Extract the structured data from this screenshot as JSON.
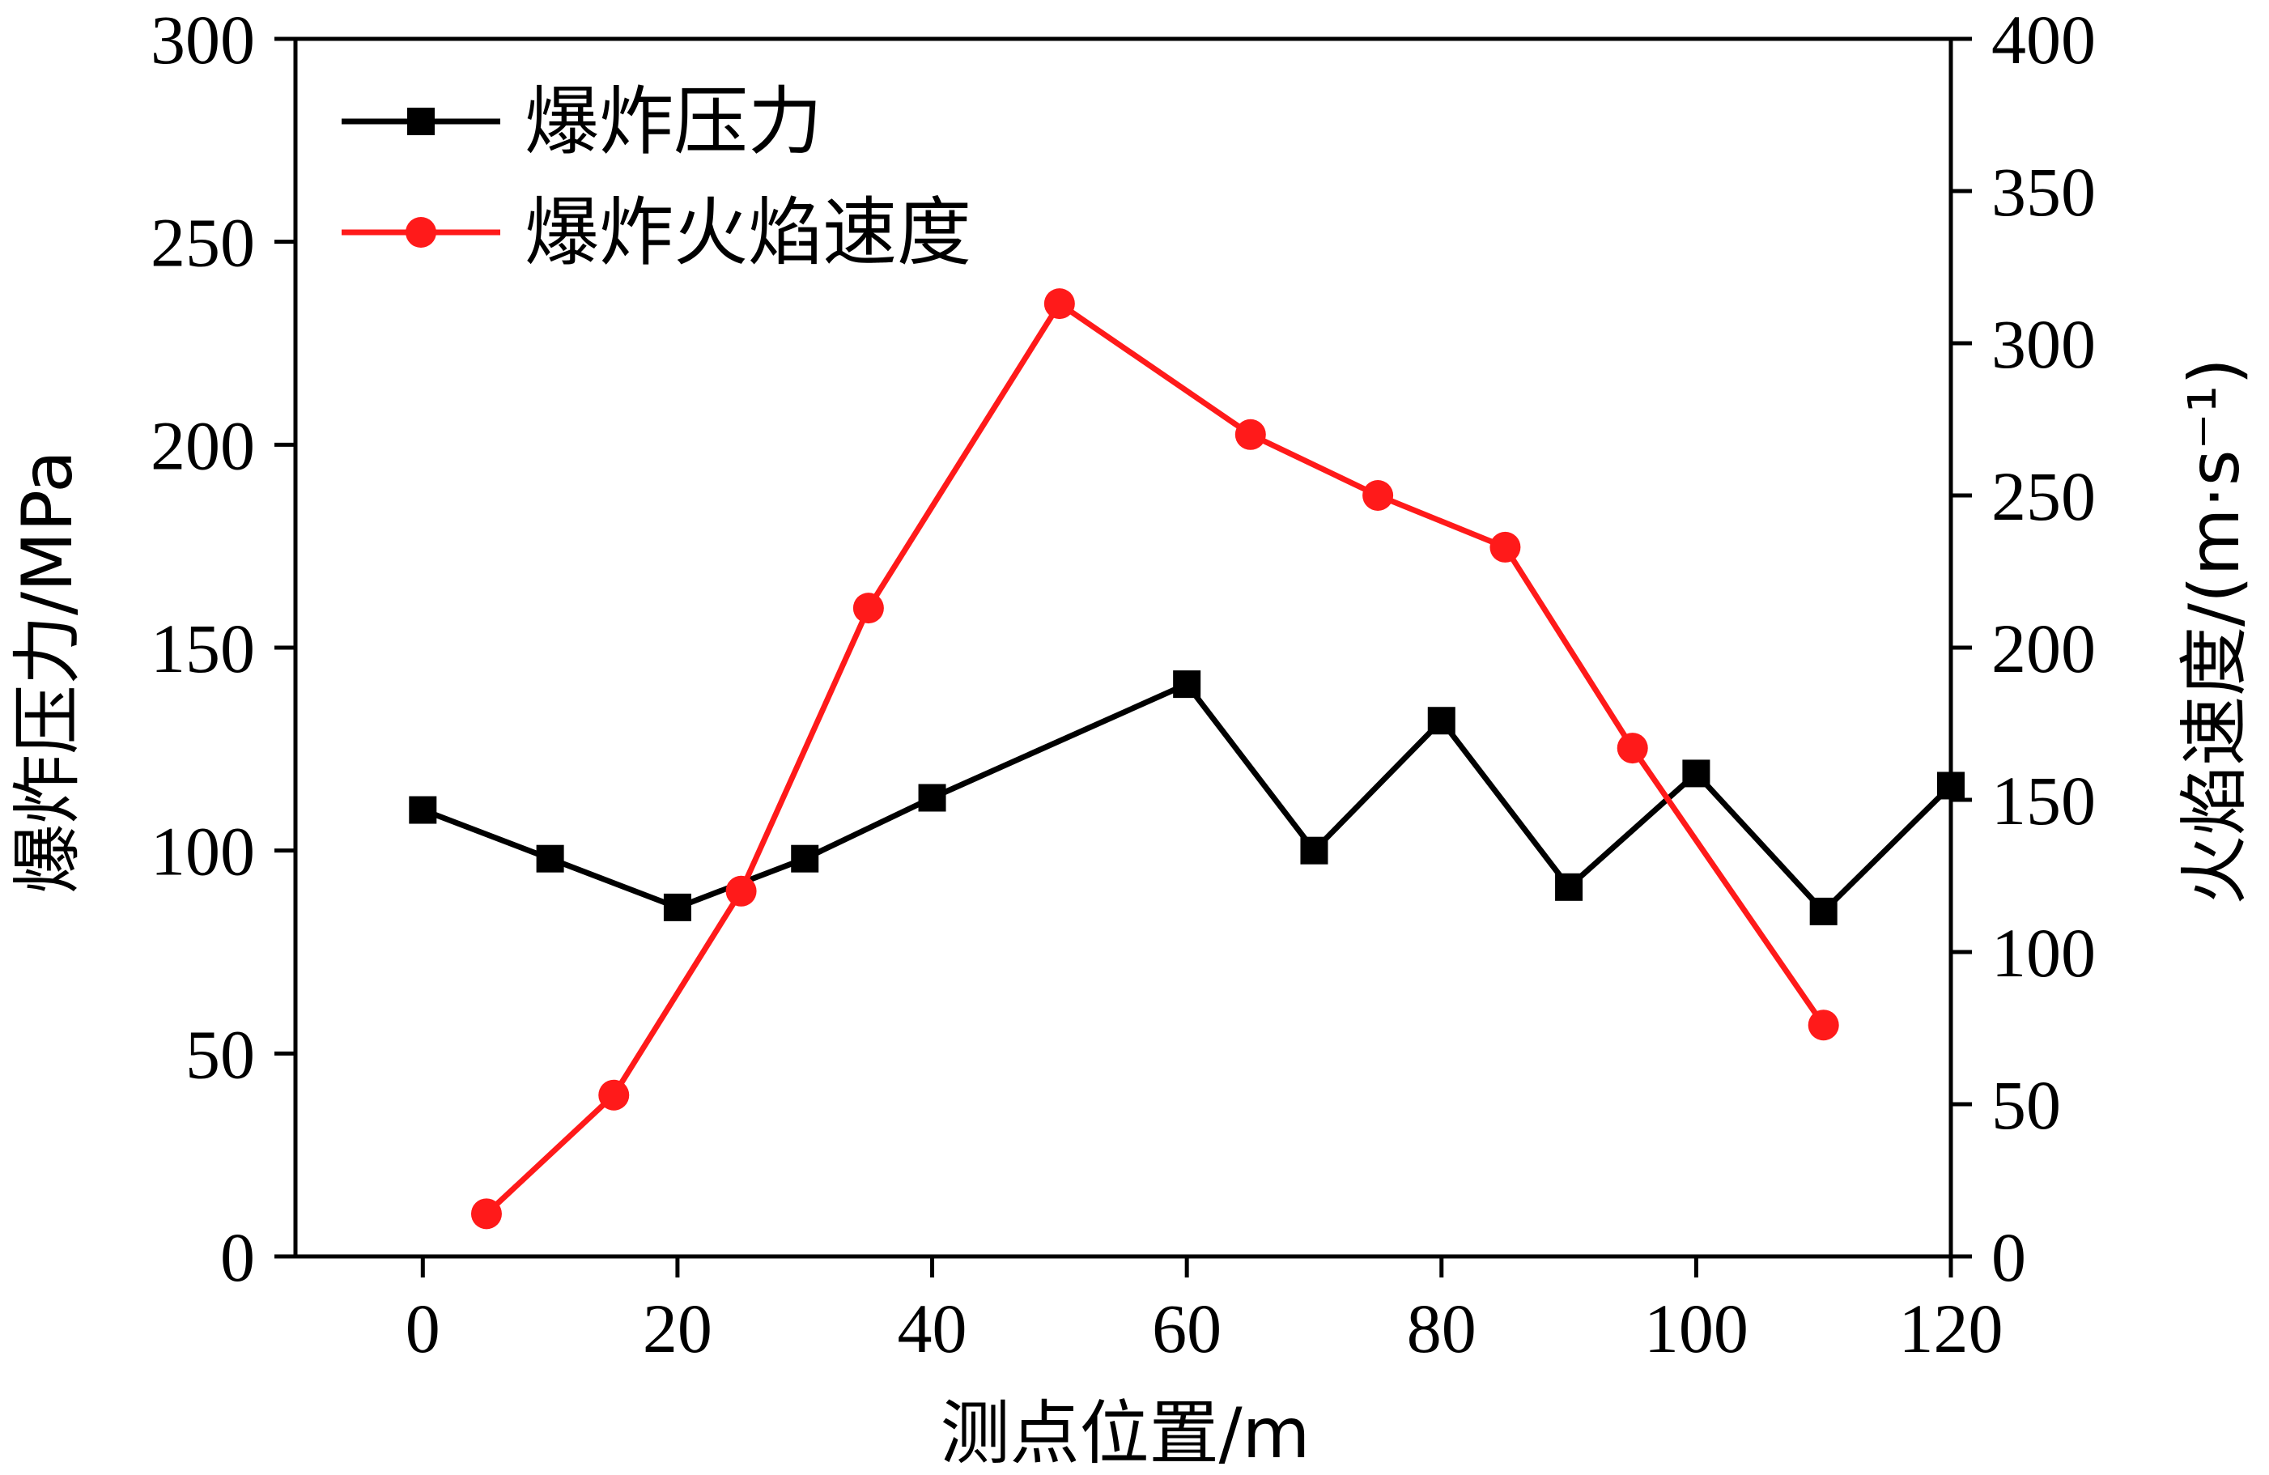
{
  "chart_data": {
    "type": "line",
    "xlabel": "测点位置/m",
    "ylabel_left": "爆炸压力/MPa",
    "ylabel_right": "火焰速度/(m·s⁻¹)",
    "xlim": [
      -10,
      120
    ],
    "ylim_left": [
      0,
      300
    ],
    "ylim_right": [
      0,
      400
    ],
    "x_ticks": [
      "0",
      "20",
      "40",
      "60",
      "80",
      "100",
      "120"
    ],
    "y_left_ticks": [
      "0",
      "50",
      "100",
      "150",
      "200",
      "250",
      "300"
    ],
    "y_right_ticks": [
      "0",
      "50",
      "100",
      "150",
      "200",
      "250",
      "300",
      "350",
      "400"
    ],
    "grid": false,
    "legend_position": "top-left",
    "series": [
      {
        "name": "爆炸压力",
        "axis": "left",
        "color": "#000000",
        "marker": "square",
        "x": [
          0,
          10,
          20,
          30,
          40,
          60,
          70,
          80,
          90,
          100,
          110,
          120
        ],
        "y": [
          110,
          98,
          86,
          98,
          113,
          141,
          100,
          132,
          91,
          119,
          85,
          116
        ]
      },
      {
        "name": "爆炸火焰速度",
        "axis": "right",
        "color": "#ff1a1a",
        "marker": "circle",
        "x": [
          5,
          15,
          25,
          35,
          50,
          65,
          75,
          85,
          95,
          110
        ],
        "y": [
          14,
          53,
          120,
          213,
          313,
          270,
          250,
          233,
          167,
          76
        ]
      }
    ]
  }
}
